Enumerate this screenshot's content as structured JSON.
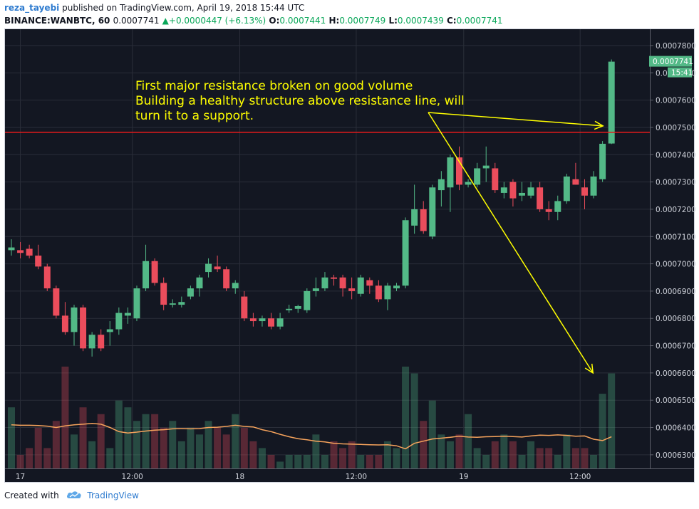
{
  "header": {
    "author": "reza_tayebi",
    "published_text": "published on TradingView.com, April 19, 2018 15:44 UTC",
    "symbol": "BINANCE:WANBTC, 60",
    "last": "0.0007741",
    "change": "+0.0000447 (+6.13%)",
    "o_label": "O:",
    "o_value": "0.0007441",
    "h_label": "H:",
    "h_value": "0.0007749",
    "l_label": "L:",
    "l_value": "0.0007439",
    "c_label": "C:",
    "c_value": "0.0007741"
  },
  "footer": {
    "created_with": "Created with",
    "brand": "TradingView"
  },
  "colors": {
    "background": "#131722",
    "up": "#53b987",
    "down": "#eb4d5c",
    "resistance": "#e51b1b",
    "ma": "#f6a35c",
    "annotation": "#ffff00",
    "price_tag": "#53b987"
  },
  "chart_data": {
    "type": "candlestick",
    "title": "",
    "y_axis": {
      "min": 0.000625,
      "max": 0.000786,
      "ticks": [
        "0.0007800",
        "0.0007700",
        "0.0007600",
        "0.0007500",
        "0.0007400",
        "0.0007300",
        "0.0007200",
        "0.0007100",
        "0.0007000",
        "0.0006900",
        "0.0006800",
        "0.0006700",
        "0.0006600",
        "0.0006500",
        "0.0006400",
        "0.0006300"
      ],
      "tick_values": [
        0.00078,
        0.00077,
        0.00076,
        0.00075,
        0.00074,
        0.00073,
        0.00072,
        0.00071,
        0.0007,
        0.00069,
        0.00068,
        0.00067,
        0.00066,
        0.00065,
        0.00064,
        0.00063
      ]
    },
    "x_axis": {
      "ticks": [
        "17",
        "12:00",
        "18",
        "12:00",
        "19",
        "12:00"
      ],
      "tick_index": [
        1,
        13.5,
        25.5,
        38.5,
        50.5,
        63.5
      ]
    },
    "last_price_label": "0.0007741",
    "countdown_label": "15:41",
    "resistance_level": 0.0007482,
    "candles": [
      {
        "o": 0.000705,
        "h": 0.000709,
        "l": 0.000703,
        "c": 0.000706
      },
      {
        "o": 0.000705,
        "h": 0.000708,
        "l": 0.000702,
        "c": 0.000704
      },
      {
        "o": 0.0007055,
        "h": 0.000707,
        "l": 0.000702,
        "c": 0.000703
      },
      {
        "o": 0.000703,
        "h": 0.000707,
        "l": 0.000698,
        "c": 0.000699
      },
      {
        "o": 0.000699,
        "h": 0.0007,
        "l": 0.00069,
        "c": 0.000691
      },
      {
        "o": 0.000691,
        "h": 0.000692,
        "l": 0.00068,
        "c": 0.000681
      },
      {
        "o": 0.000681,
        "h": 0.000686,
        "l": 0.000674,
        "c": 0.000675
      },
      {
        "o": 0.000675,
        "h": 0.000685,
        "l": 0.00067,
        "c": 0.000684
      },
      {
        "o": 0.000684,
        "h": 0.000685,
        "l": 0.000668,
        "c": 0.000669
      },
      {
        "o": 0.000669,
        "h": 0.000675,
        "l": 0.000666,
        "c": 0.000674
      },
      {
        "o": 0.000674,
        "h": 0.000676,
        "l": 0.000668,
        "c": 0.000669
      },
      {
        "o": 0.000675,
        "h": 0.000679,
        "l": 0.00067,
        "c": 0.000676
      },
      {
        "o": 0.000676,
        "h": 0.000684,
        "l": 0.000674,
        "c": 0.000682
      },
      {
        "o": 0.000681,
        "h": 0.000684,
        "l": 0.000678,
        "c": 0.000682
      },
      {
        "o": 0.00068,
        "h": 0.000692,
        "l": 0.000679,
        "c": 0.000691
      },
      {
        "o": 0.000691,
        "h": 0.000707,
        "l": 0.00069,
        "c": 0.000701
      },
      {
        "o": 0.000701,
        "h": 0.000702,
        "l": 0.000692,
        "c": 0.000693
      },
      {
        "o": 0.000693,
        "h": 0.000695,
        "l": 0.000683,
        "c": 0.000685
      },
      {
        "o": 0.000685,
        "h": 0.000687,
        "l": 0.000684,
        "c": 0.0006855
      },
      {
        "o": 0.000685,
        "h": 0.000688,
        "l": 0.000684,
        "c": 0.000686
      },
      {
        "o": 0.000688,
        "h": 0.000692,
        "l": 0.000687,
        "c": 0.000691
      },
      {
        "o": 0.000691,
        "h": 0.000696,
        "l": 0.000688,
        "c": 0.000695
      },
      {
        "o": 0.000697,
        "h": 0.000702,
        "l": 0.000695,
        "c": 0.0007
      },
      {
        "o": 0.000699,
        "h": 0.000703,
        "l": 0.000697,
        "c": 0.000698
      },
      {
        "o": 0.000698,
        "h": 0.000699,
        "l": 0.00069,
        "c": 0.000691
      },
      {
        "o": 0.000691,
        "h": 0.000694,
        "l": 0.000689,
        "c": 0.000693
      },
      {
        "o": 0.000688,
        "h": 0.00069,
        "l": 0.000679,
        "c": 0.00068
      },
      {
        "o": 0.00068,
        "h": 0.000682,
        "l": 0.000677,
        "c": 0.000679
      },
      {
        "o": 0.000679,
        "h": 0.000681,
        "l": 0.000677,
        "c": 0.00068
      },
      {
        "o": 0.00068,
        "h": 0.000682,
        "l": 0.000676,
        "c": 0.000677
      },
      {
        "o": 0.000677,
        "h": 0.000682,
        "l": 0.000676,
        "c": 0.00068
      },
      {
        "o": 0.000683,
        "h": 0.000685,
        "l": 0.000682,
        "c": 0.0006835
      },
      {
        "o": 0.0006835,
        "h": 0.000685,
        "l": 0.000682,
        "c": 0.0006845
      },
      {
        "o": 0.000683,
        "h": 0.000691,
        "l": 0.000682,
        "c": 0.00069
      },
      {
        "o": 0.00069,
        "h": 0.000695,
        "l": 0.000688,
        "c": 0.000691
      },
      {
        "o": 0.000691,
        "h": 0.000697,
        "l": 0.00069,
        "c": 0.000695
      },
      {
        "o": 0.000695,
        "h": 0.000696,
        "l": 0.000692,
        "c": 0.0006945
      },
      {
        "o": 0.000695,
        "h": 0.000696,
        "l": 0.000688,
        "c": 0.000691
      },
      {
        "o": 0.000691,
        "h": 0.000695,
        "l": 0.000687,
        "c": 0.00069
      },
      {
        "o": 0.000689,
        "h": 0.000696,
        "l": 0.000688,
        "c": 0.000695
      },
      {
        "o": 0.000694,
        "h": 0.000695,
        "l": 0.000689,
        "c": 0.000692
      },
      {
        "o": 0.000692,
        "h": 0.000694,
        "l": 0.000686,
        "c": 0.000687
      },
      {
        "o": 0.000687,
        "h": 0.000693,
        "l": 0.000683,
        "c": 0.000692
      },
      {
        "o": 0.000691,
        "h": 0.000693,
        "l": 0.00069,
        "c": 0.000692
      },
      {
        "o": 0.000692,
        "h": 0.000717,
        "l": 0.000691,
        "c": 0.000716
      },
      {
        "o": 0.000714,
        "h": 0.000729,
        "l": 0.000711,
        "c": 0.00072
      },
      {
        "o": 0.00072,
        "h": 0.000723,
        "l": 0.000711,
        "c": 0.000712
      },
      {
        "o": 0.00071,
        "h": 0.000729,
        "l": 0.000709,
        "c": 0.000728
      },
      {
        "o": 0.000727,
        "h": 0.000734,
        "l": 0.000721,
        "c": 0.000731
      },
      {
        "o": 0.000728,
        "h": 0.00074,
        "l": 0.000719,
        "c": 0.000739
      },
      {
        "o": 0.000739,
        "h": 0.000743,
        "l": 0.000727,
        "c": 0.000729
      },
      {
        "o": 0.000729,
        "h": 0.000731,
        "l": 0.000728,
        "c": 0.00073
      },
      {
        "o": 0.000729,
        "h": 0.000737,
        "l": 0.000728,
        "c": 0.000735
      },
      {
        "o": 0.000735,
        "h": 0.000743,
        "l": 0.00073,
        "c": 0.000736
      },
      {
        "o": 0.000735,
        "h": 0.000737,
        "l": 0.000726,
        "c": 0.000727
      },
      {
        "o": 0.000726,
        "h": 0.00073,
        "l": 0.000724,
        "c": 0.000728
      },
      {
        "o": 0.00073,
        "h": 0.000731,
        "l": 0.000721,
        "c": 0.000724
      },
      {
        "o": 0.000725,
        "h": 0.00073,
        "l": 0.000723,
        "c": 0.000726
      },
      {
        "o": 0.000725,
        "h": 0.00073,
        "l": 0.000724,
        "c": 0.000728
      },
      {
        "o": 0.000728,
        "h": 0.00073,
        "l": 0.000719,
        "c": 0.00072
      },
      {
        "o": 0.00072,
        "h": 0.000723,
        "l": 0.000716,
        "c": 0.000719
      },
      {
        "o": 0.000719,
        "h": 0.000725,
        "l": 0.000716,
        "c": 0.000723
      },
      {
        "o": 0.000723,
        "h": 0.000733,
        "l": 0.000722,
        "c": 0.000732
      },
      {
        "o": 0.000731,
        "h": 0.000737,
        "l": 0.000729,
        "c": 0.000729
      },
      {
        "o": 0.000728,
        "h": 0.000731,
        "l": 0.00072,
        "c": 0.000725
      },
      {
        "o": 0.000725,
        "h": 0.000734,
        "l": 0.000724,
        "c": 0.000732
      },
      {
        "o": 0.000731,
        "h": 0.000745,
        "l": 0.00073,
        "c": 0.000744
      },
      {
        "o": 0.0007441,
        "h": 0.0007749,
        "l": 0.0007439,
        "c": 0.0007741
      }
    ],
    "volume": [
      9,
      2,
      3,
      6,
      3,
      7,
      15,
      5,
      9,
      4,
      8,
      3,
      10,
      9,
      7,
      8,
      8,
      6,
      7,
      4,
      6,
      5,
      7,
      6,
      5,
      8,
      6,
      4,
      3,
      2,
      1,
      2,
      2,
      2,
      5,
      2,
      4,
      3,
      4,
      2,
      2,
      2,
      4,
      3,
      15,
      14,
      7,
      10,
      5,
      4,
      5,
      8,
      3,
      2,
      4,
      5,
      4,
      2,
      4,
      3,
      3,
      2,
      5,
      3,
      3,
      2,
      11,
      14
    ],
    "ma_values": [
      0.000641,
      0.0006408,
      0.0006408,
      0.0006407,
      0.0006405,
      0.00064,
      0.0006406,
      0.000641,
      0.0006412,
      0.0006415,
      0.0006412,
      0.00064,
      0.0006385,
      0.000638,
      0.0006383,
      0.0006387,
      0.000639,
      0.0006392,
      0.0006395,
      0.0006396,
      0.0006395,
      0.0006396,
      0.00064,
      0.0006401,
      0.0006404,
      0.0006408,
      0.0006404,
      0.0006402,
      0.0006392,
      0.0006385,
      0.0006375,
      0.0006366,
      0.0006359,
      0.0006355,
      0.000635,
      0.0006347,
      0.0006342,
      0.000634,
      0.0006339,
      0.0006338,
      0.0006337,
      0.0006336,
      0.0006337,
      0.0006333,
      0.0006322,
      0.0006342,
      0.000635,
      0.0006358,
      0.0006361,
      0.0006364,
      0.0006368,
      0.0006365,
      0.0006364,
      0.0006366,
      0.0006367,
      0.0006368,
      0.0006367,
      0.0006365,
      0.0006369,
      0.0006372,
      0.0006371,
      0.0006373,
      0.0006371,
      0.0006368,
      0.0006369,
      0.0006357,
      0.0006352,
      0.0006366
    ],
    "annotation": {
      "lines": [
        "First major resistance broken on good volume",
        "Building a healthy structure above resistance line, will",
        "turn it to a support."
      ]
    }
  }
}
